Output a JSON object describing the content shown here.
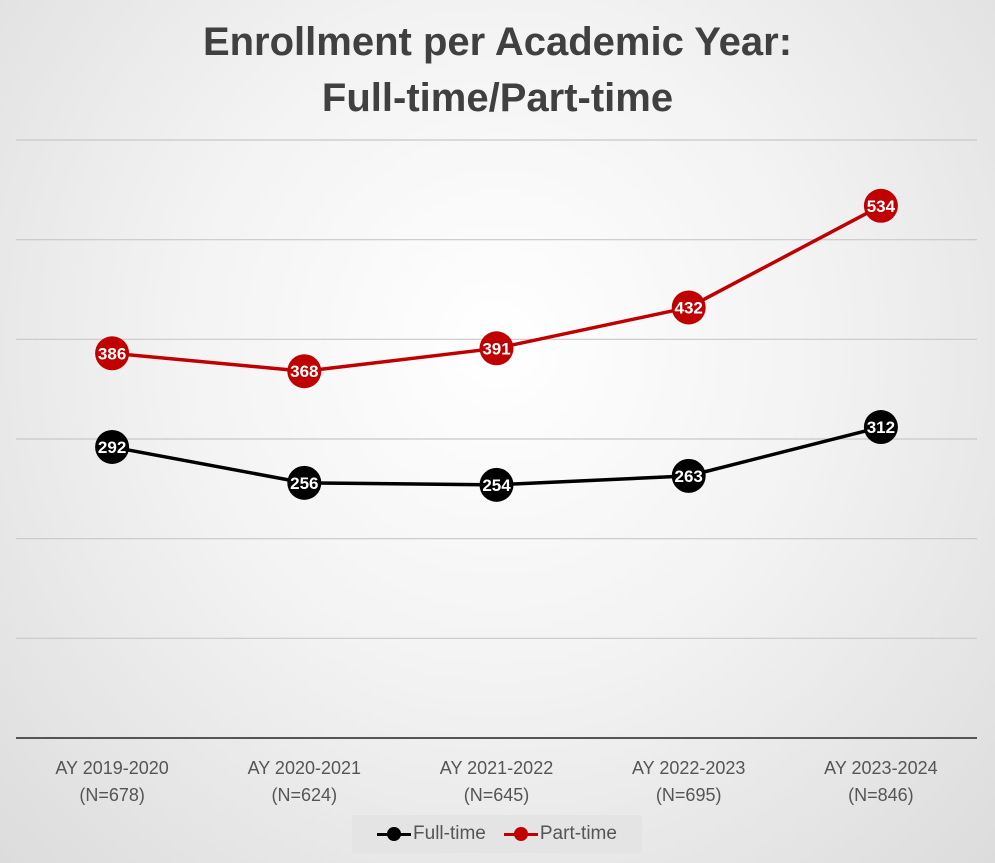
{
  "chart_data": {
    "type": "line",
    "title": "Enrollment per Academic Year:",
    "subtitle": "Full-time/Part-time",
    "categories": [
      [
        "AY 2019-2020",
        "(N=678)"
      ],
      [
        "AY 2020-2021",
        "(N=624)"
      ],
      [
        "AY 2021-2022",
        "(N=645)"
      ],
      [
        "AY 2022-2023",
        "(N=695)"
      ],
      [
        "AY 2023-2024",
        "(N=846)"
      ]
    ],
    "series": [
      {
        "name": "Full-time",
        "color": "#000000",
        "values": [
          292,
          256,
          254,
          263,
          312
        ]
      },
      {
        "name": "Part-time",
        "color": "#c00000",
        "values": [
          386,
          368,
          391,
          432,
          534
        ]
      }
    ],
    "ylim": [
      0,
      600
    ],
    "y_gridlines": [
      100,
      200,
      300,
      400,
      500,
      600
    ],
    "grid": true,
    "y_tick_labels_shown": false,
    "data_labels": true,
    "legend_position": "bottom"
  }
}
